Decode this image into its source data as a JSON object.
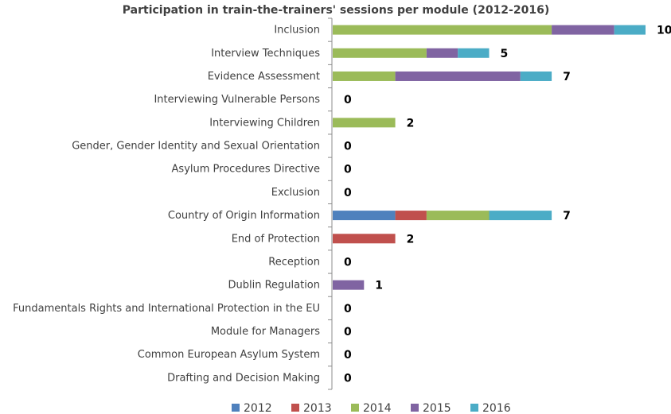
{
  "chart_data": {
    "type": "bar",
    "orientation": "horizontal",
    "stacked": true,
    "title": "Participation in train-the-trainers' sessions per module (2012-2016)",
    "categories": [
      "Inclusion",
      "Interview Techniques",
      "Evidence Assessment",
      "Interviewing Vulnerable Persons",
      "Interviewing Children",
      "Gender, Gender Identity and Sexual Orientation",
      "Asylum Procedures Directive",
      "Exclusion",
      "Country of Origin Information",
      "End of Protection",
      "Reception",
      "Dublin Regulation",
      "Fundamentals Rights and International Protection in the EU",
      "Module for Managers",
      "Common European Asylum System",
      "Drafting and Decision Making"
    ],
    "series": [
      {
        "name": "2012",
        "color": "#4F81BD",
        "values": [
          0,
          0,
          0,
          0,
          0,
          0,
          0,
          0,
          2,
          0,
          0,
          0,
          0,
          0,
          0,
          0
        ]
      },
      {
        "name": "2013",
        "color": "#C0504D",
        "values": [
          0,
          0,
          0,
          0,
          0,
          0,
          0,
          0,
          1,
          2,
          0,
          0,
          0,
          0,
          0,
          0
        ]
      },
      {
        "name": "2014",
        "color": "#9BBB59",
        "values": [
          7,
          3,
          2,
          0,
          2,
          0,
          0,
          0,
          2,
          0,
          0,
          0,
          0,
          0,
          0,
          0
        ]
      },
      {
        "name": "2015",
        "color": "#8064A2",
        "values": [
          2,
          1,
          4,
          0,
          0,
          0,
          0,
          0,
          0,
          0,
          0,
          1,
          0,
          0,
          0,
          0
        ]
      },
      {
        "name": "2016",
        "color": "#4BACC6",
        "values": [
          1,
          1,
          1,
          0,
          0,
          0,
          0,
          0,
          2,
          0,
          0,
          0,
          0,
          0,
          0,
          0
        ]
      }
    ],
    "totals": [
      "10",
      "5",
      "7",
      "0",
      "2",
      "0",
      "0",
      "0",
      "7",
      "2",
      "0",
      "1",
      "0",
      "0",
      "0",
      "0"
    ],
    "xlim": [
      0,
      10
    ],
    "grid": false,
    "legend_position": "bottom"
  }
}
